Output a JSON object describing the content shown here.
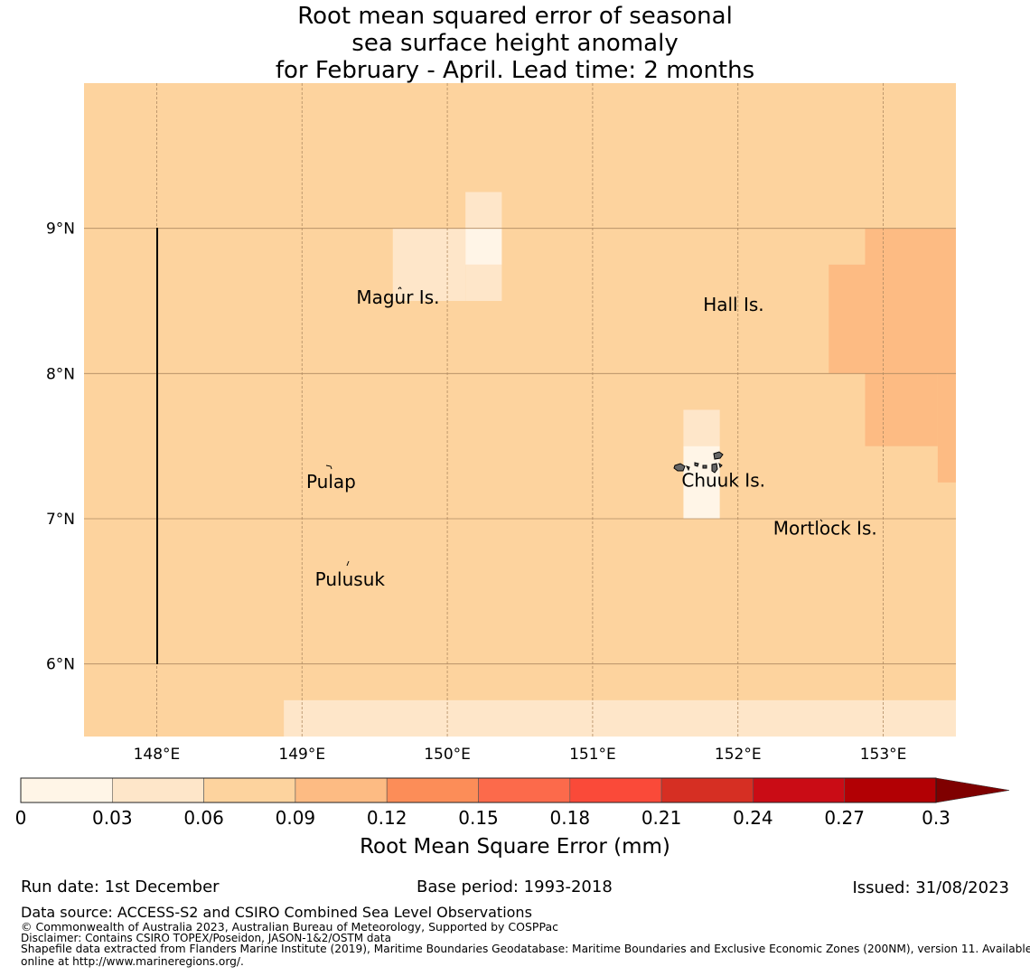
{
  "title_lines": [
    "Root mean squared error of seasonal",
    "sea surface height anomaly",
    "for February - April. Lead time: 2 months"
  ],
  "map": {
    "lon_ticks": [
      {
        "value": 148,
        "label": "148°E"
      },
      {
        "value": 149,
        "label": "149°E"
      },
      {
        "value": 150,
        "label": "150°E"
      },
      {
        "value": 151,
        "label": "151°E"
      },
      {
        "value": 152,
        "label": "152°E"
      },
      {
        "value": 153,
        "label": "153°E"
      }
    ],
    "lat_ticks": [
      {
        "value": 9,
        "label": "9°N"
      },
      {
        "value": 8,
        "label": "8°N"
      },
      {
        "value": 7,
        "label": "7°N"
      },
      {
        "value": 6,
        "label": "6°N"
      }
    ],
    "place_labels": [
      {
        "name": "Magur Is.",
        "lon": 149.66,
        "lat": 8.53
      },
      {
        "name": "Hall Is.",
        "lon": 151.97,
        "lat": 8.48
      },
      {
        "name": "Pulap",
        "lon": 149.2,
        "lat": 7.26
      },
      {
        "name": "Chuuk Is.",
        "lon": 151.9,
        "lat": 7.27
      },
      {
        "name": "Mortlock Is.",
        "lon": 152.6,
        "lat": 6.94
      },
      {
        "name": "Pulusuk",
        "lon": 149.33,
        "lat": 6.59
      }
    ],
    "error_bins": [
      {
        "lon": [
          149.625,
          150.125
        ],
        "lat": [
          8.5,
          9.0
        ],
        "value": 0.045
      },
      {
        "lon": [
          150.125,
          150.375
        ],
        "lat": [
          8.5,
          8.75
        ],
        "value": 0.045
      },
      {
        "lon": [
          150.125,
          150.375
        ],
        "lat": [
          9.0,
          9.25
        ],
        "value": 0.045
      },
      {
        "lon": [
          150.125,
          150.375
        ],
        "lat": [
          8.75,
          9.0
        ],
        "value": 0.015
      },
      {
        "lon": [
          151.625,
          151.875
        ],
        "lat": [
          7.5,
          7.75
        ],
        "value": 0.045
      },
      {
        "lon": [
          151.625,
          151.875
        ],
        "lat": [
          7.0,
          7.5
        ],
        "value": 0.015
      },
      {
        "lon": [
          148.875,
          153.5
        ],
        "lat": [
          5.5,
          5.75
        ],
        "value": 0.045
      },
      {
        "lon": [
          152.875,
          153.5
        ],
        "lat": [
          8.0,
          9.0
        ],
        "value": 0.105
      },
      {
        "lon": [
          152.625,
          152.875
        ],
        "lat": [
          8.0,
          8.75
        ],
        "value": 0.105
      },
      {
        "lon": [
          152.875,
          153.375
        ],
        "lat": [
          7.5,
          8.0
        ],
        "value": 0.105
      },
      {
        "lon": [
          153.375,
          153.5
        ],
        "lat": [
          7.25,
          8.0
        ],
        "value": 0.105
      }
    ],
    "background_value": 0.075
  },
  "colorbar": {
    "ticks": [
      "0",
      "0.03",
      "0.06",
      "0.09",
      "0.12",
      "0.15",
      "0.18",
      "0.21",
      "0.24",
      "0.27",
      "0.3"
    ],
    "colors": [
      "#fff5e7",
      "#fee6c9",
      "#fdd39e",
      "#fdbb83",
      "#fc8d58",
      "#fc6a4b",
      "#fa4a39",
      "#d62f23",
      "#ca0c15",
      "#b20004"
    ],
    "extend_color": "#7f0000",
    "label": "Root Mean Square Error (mm)"
  },
  "footer": {
    "run_date": "Run date: 1st December",
    "base_period": "Base period: 1993-2018",
    "issued": "Issued: 31/08/2023",
    "data_source": "Data source: ACCESS-S2 and CSIRO Combined Sea Level Observations",
    "copyright": "© Commonwealth of Australia 2023, Australian Bureau of Meteorology, Supported by COSPPac",
    "disclaimer": "Disclaimer: Contains CSIRO TOPEX/Poseidon, JASON-1&2/OSTM data",
    "shapefile_line1": "Shapefile data extracted from Flanders Marine Institute (2019), Maritime Boundaries Geodatabase: Maritime Boundaries and Exclusive Economic Zones (200NM), version 11. Available",
    "shapefile_line2": "online at http://www.marineregions.org/."
  },
  "colors": {
    "background_fill": "#fdd39e",
    "grid": "#b08a62"
  }
}
